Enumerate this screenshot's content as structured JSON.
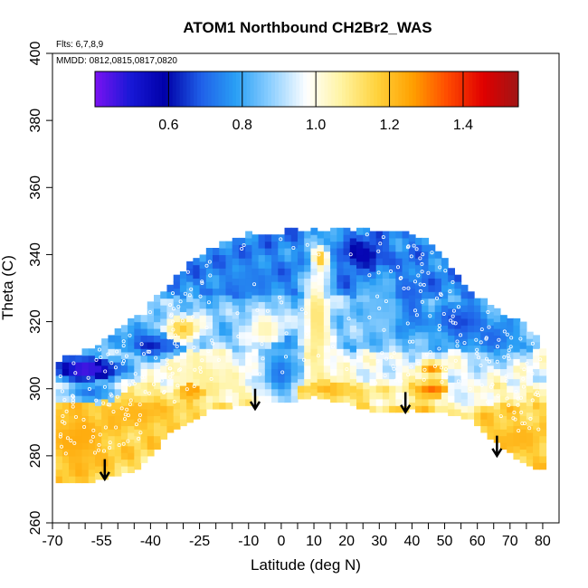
{
  "chart_data": {
    "type": "heatmap",
    "title": "ATOM1 Northbound CH2Br2_WAS",
    "notes": [
      "Flts: 6,7,8,9",
      "MMDD: 0812,0815,0817,0820"
    ],
    "xlabel": "Latitude (deg N)",
    "ylabel": "Theta (C)",
    "xlim": [
      -70,
      85
    ],
    "ylim": [
      260,
      400
    ],
    "x_ticks_major": [
      -70,
      -55,
      -40,
      -25,
      -10,
      0,
      10,
      20,
      30,
      40,
      50,
      60,
      70,
      80
    ],
    "x_ticks_minor_step": 5,
    "y_ticks": [
      260,
      280,
      300,
      320,
      340,
      360,
      380,
      400
    ],
    "colorbar": {
      "range": [
        0.4,
        1.55
      ],
      "tick_values": [
        0.6,
        0.8,
        1.0,
        1.2,
        1.4
      ],
      "tick_labels": [
        "0.6",
        "0.8",
        "1.0",
        "1.2",
        "1.4"
      ],
      "colors": [
        "#7b12f2",
        "#1818d6",
        "#0000a8",
        "#1f5fe8",
        "#2aa0f5",
        "#8fd0ff",
        "#ffffff",
        "#fff3a0",
        "#ffd23c",
        "#ffa000",
        "#ff4a00",
        "#e00000",
        "#a01515"
      ]
    },
    "top_boundary": [
      [
        -68,
        308
      ],
      [
        -62,
        310
      ],
      [
        -55,
        313
      ],
      [
        -48,
        318
      ],
      [
        -42,
        322
      ],
      [
        -35,
        330
      ],
      [
        -28,
        337
      ],
      [
        -20,
        342
      ],
      [
        -12,
        345
      ],
      [
        0,
        346
      ],
      [
        10,
        347
      ],
      [
        20,
        347
      ],
      [
        28,
        347
      ],
      [
        35,
        347
      ],
      [
        40,
        346
      ],
      [
        45,
        343
      ],
      [
        50,
        338
      ],
      [
        55,
        332
      ],
      [
        60,
        327
      ],
      [
        65,
        323
      ],
      [
        70,
        320
      ],
      [
        75,
        318
      ],
      [
        78,
        315
      ],
      [
        80,
        312
      ]
    ],
    "bottom_boundary": [
      [
        -68,
        272
      ],
      [
        -60,
        272
      ],
      [
        -52,
        274
      ],
      [
        -45,
        276
      ],
      [
        -40,
        280
      ],
      [
        -35,
        287
      ],
      [
        -28,
        290
      ],
      [
        -22,
        294
      ],
      [
        -15,
        295
      ],
      [
        -8,
        296
      ],
      [
        0,
        296
      ],
      [
        10,
        298
      ],
      [
        20,
        296
      ],
      [
        30,
        293
      ],
      [
        40,
        294
      ],
      [
        50,
        293
      ],
      [
        58,
        291
      ],
      [
        65,
        285
      ],
      [
        70,
        281
      ],
      [
        75,
        278
      ],
      [
        80,
        276
      ]
    ],
    "anomalies": [
      {
        "lat": -60,
        "theta": 306,
        "sx": 12,
        "sy": 4,
        "v": 0.42
      },
      {
        "lat": -40,
        "theta": 313,
        "sx": 8,
        "sy": 4,
        "v": 0.62
      },
      {
        "lat": -58,
        "theta": 299,
        "sx": 10,
        "sy": 4,
        "v": 0.72
      },
      {
        "lat": -62,
        "theta": 285,
        "sx": 10,
        "sy": 12,
        "v": 1.24
      },
      {
        "lat": -45,
        "theta": 293,
        "sx": 14,
        "sy": 6,
        "v": 1.22
      },
      {
        "lat": -27,
        "theta": 300,
        "sx": 5,
        "sy": 4,
        "v": 1.26
      },
      {
        "lat": -30,
        "theta": 318,
        "sx": 6,
        "sy": 4,
        "v": 1.18
      },
      {
        "lat": -24,
        "theta": 304,
        "sx": 10,
        "sy": 6,
        "v": 1.08
      },
      {
        "lat": -10,
        "theta": 332,
        "sx": 8,
        "sy": 6,
        "v": 0.74
      },
      {
        "lat": 0,
        "theta": 305,
        "sx": 6,
        "sy": 10,
        "v": 0.72
      },
      {
        "lat": 11,
        "theta": 320,
        "sx": 4,
        "sy": 20,
        "v": 1.12
      },
      {
        "lat": 12,
        "theta": 339,
        "sx": 3,
        "sy": 4,
        "v": 1.2
      },
      {
        "lat": 15,
        "theta": 300,
        "sx": 10,
        "sy": 3,
        "v": 1.22
      },
      {
        "lat": 25,
        "theta": 340,
        "sx": 6,
        "sy": 4,
        "v": 0.55
      },
      {
        "lat": 30,
        "theta": 325,
        "sx": 6,
        "sy": 10,
        "v": 0.84
      },
      {
        "lat": 40,
        "theta": 325,
        "sx": 5,
        "sy": 10,
        "v": 0.7
      },
      {
        "lat": 46,
        "theta": 300,
        "sx": 6,
        "sy": 3,
        "v": 1.32
      },
      {
        "lat": 46,
        "theta": 306,
        "sx": 4,
        "sy": 2,
        "v": 1.28
      },
      {
        "lat": 55,
        "theta": 320,
        "sx": 10,
        "sy": 6,
        "v": 0.66
      },
      {
        "lat": 65,
        "theta": 315,
        "sx": 8,
        "sy": 6,
        "v": 0.7
      },
      {
        "lat": 72,
        "theta": 285,
        "sx": 10,
        "sy": 6,
        "v": 1.22
      },
      {
        "lat": 55,
        "theta": 298,
        "sx": 6,
        "sy": 4,
        "v": 0.92
      },
      {
        "lat": -5,
        "theta": 318,
        "sx": 6,
        "sy": 6,
        "v": 1.05
      }
    ],
    "arrows": [
      {
        "lat": -54,
        "theta_top": 279,
        "theta_tip": 273
      },
      {
        "lat": -8,
        "theta_top": 300,
        "theta_tip": 294
      },
      {
        "lat": 38,
        "theta_top": 299,
        "theta_tip": 293
      },
      {
        "lat": 66,
        "theta_top": 286,
        "theta_tip": 280
      }
    ]
  }
}
